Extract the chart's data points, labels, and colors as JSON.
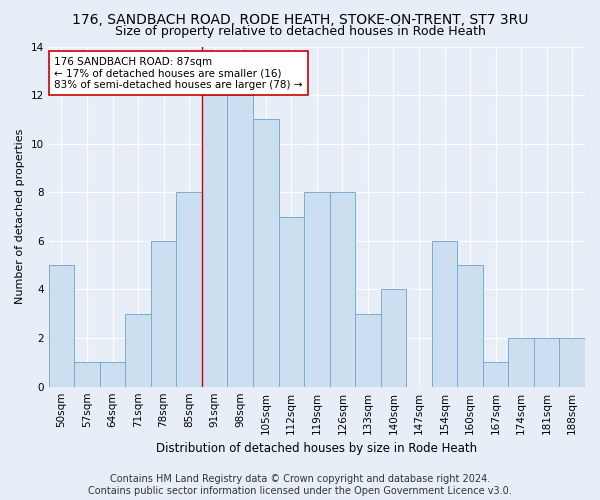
{
  "title": "176, SANDBACH ROAD, RODE HEATH, STOKE-ON-TRENT, ST7 3RU",
  "subtitle": "Size of property relative to detached houses in Rode Heath",
  "xlabel": "Distribution of detached houses by size in Rode Heath",
  "ylabel": "Number of detached properties",
  "categories": [
    "50sqm",
    "57sqm",
    "64sqm",
    "71sqm",
    "78sqm",
    "85sqm",
    "91sqm",
    "98sqm",
    "105sqm",
    "112sqm",
    "119sqm",
    "126sqm",
    "133sqm",
    "140sqm",
    "147sqm",
    "154sqm",
    "160sqm",
    "167sqm",
    "174sqm",
    "181sqm",
    "188sqm"
  ],
  "values": [
    5,
    1,
    1,
    3,
    6,
    8,
    12,
    12,
    11,
    7,
    8,
    8,
    3,
    4,
    0,
    6,
    5,
    1,
    2,
    2,
    2
  ],
  "bar_color": "#ccdff0",
  "bar_edge_color": "#7aabcf",
  "annotation_line1": "176 SANDBACH ROAD: 87sqm",
  "annotation_line2": "← 17% of detached houses are smaller (16)",
  "annotation_line3": "83% of semi-detached houses are larger (78) →",
  "annotation_box_color": "white",
  "annotation_box_edge_color": "#cc0000",
  "vline_color": "#cc0000",
  "ylim": [
    0,
    14
  ],
  "yticks": [
    0,
    2,
    4,
    6,
    8,
    10,
    12,
    14
  ],
  "footer_line1": "Contains HM Land Registry data © Crown copyright and database right 2024.",
  "footer_line2": "Contains public sector information licensed under the Open Government Licence v3.0.",
  "bg_color": "#e8eef8",
  "grid_color": "#ffffff",
  "title_fontsize": 10,
  "subtitle_fontsize": 9,
  "tick_fontsize": 7.5,
  "ylabel_fontsize": 8,
  "xlabel_fontsize": 8.5,
  "annotation_fontsize": 7.5,
  "footer_fontsize": 7
}
